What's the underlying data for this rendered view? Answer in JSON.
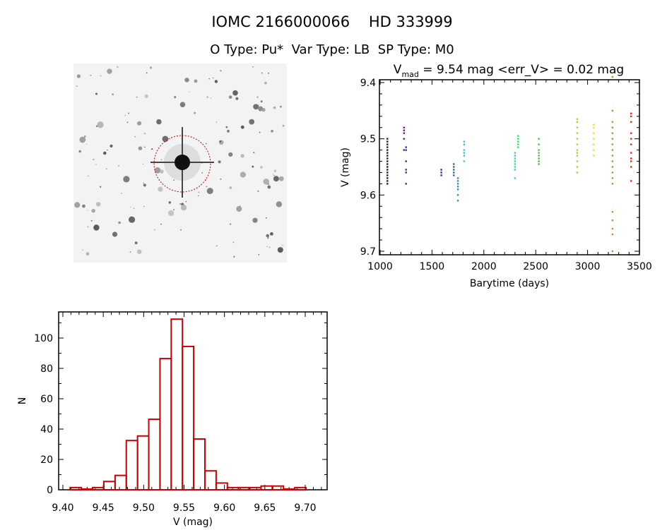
{
  "header": {
    "title": "IOMC 2166000066    HD 333999",
    "subtitle": "O Type: Pu*  Var Type: LB  SP Type: M0"
  },
  "sky_image": {
    "description_icon": "star-field-image",
    "target_marker_color": "#cc0000"
  },
  "chart_data": [
    {
      "type": "scatter",
      "title_parts": {
        "v": "V",
        "sub": "mad",
        "rest": " = 9.54 mag <err_V> = 0.02 mag"
      },
      "xlabel": "Barytime (days)",
      "ylabel": "V (mag)",
      "xlim": [
        1000,
        3500
      ],
      "ylim": [
        9.4,
        9.7
      ],
      "y_inverted": true,
      "xticks": [
        1000,
        1500,
        2000,
        2500,
        3000,
        3500
      ],
      "yticks": [
        "9.4",
        "9.5",
        "9.6",
        "9.7"
      ],
      "grid": false,
      "groups": [
        {
          "t": 1070,
          "color": "#3a0a4a",
          "v": [
            9.5,
            9.505,
            9.51,
            9.515,
            9.52,
            9.525,
            9.53,
            9.535,
            9.54,
            9.545,
            9.55,
            9.555,
            9.56,
            9.565,
            9.57,
            9.575,
            9.58
          ]
        },
        {
          "t": 1230,
          "color": "#6a1a8a",
          "v": [
            9.48,
            9.485,
            9.49,
            9.5,
            9.52
          ]
        },
        {
          "t": 1250,
          "color": "#5a1a9a",
          "v": [
            9.515,
            9.52,
            9.54,
            9.555,
            9.56,
            9.58
          ]
        },
        {
          "t": 1590,
          "color": "#1030d0",
          "v": [
            9.555,
            9.56,
            9.565
          ]
        },
        {
          "t": 1710,
          "color": "#2060d0",
          "v": [
            9.545,
            9.55,
            9.555,
            9.56,
            9.565
          ]
        },
        {
          "t": 1750,
          "color": "#2090d8",
          "v": [
            9.57,
            9.575,
            9.58,
            9.585,
            9.59,
            9.6,
            9.61
          ]
        },
        {
          "t": 1810,
          "color": "#30c0e0",
          "v": [
            9.505,
            9.51,
            9.52,
            9.525,
            9.53,
            9.54
          ]
        },
        {
          "t": 2300,
          "color": "#20e0b0",
          "v": [
            9.525,
            9.53,
            9.535,
            9.54,
            9.545,
            9.55,
            9.555,
            9.57
          ]
        },
        {
          "t": 2330,
          "color": "#30e070",
          "v": [
            9.495,
            9.5,
            9.505,
            9.51,
            9.515
          ]
        },
        {
          "t": 2530,
          "color": "#30d040",
          "v": [
            9.5,
            9.51,
            9.52,
            9.525,
            9.53,
            9.535,
            9.54,
            9.545
          ]
        },
        {
          "t": 2900,
          "color": "#90e020",
          "v": [
            9.465,
            9.47,
            9.48,
            9.49,
            9.5,
            9.51,
            9.52,
            9.525,
            9.53,
            9.54,
            9.55,
            9.56
          ]
        },
        {
          "t": 3060,
          "color": "#f0e010",
          "v": [
            9.475,
            9.48,
            9.49,
            9.5,
            9.51,
            9.52,
            9.53
          ]
        },
        {
          "t": 3240,
          "color": "#e08020",
          "v": [
            9.39,
            9.45,
            9.47,
            9.48,
            9.49,
            9.5,
            9.51,
            9.52,
            9.53,
            9.54,
            9.55,
            9.56,
            9.57,
            9.58,
            9.63,
            9.645,
            9.66,
            9.67,
            9.7
          ]
        },
        {
          "t": 3420,
          "color": "#d03020",
          "v": [
            9.455,
            9.46,
            9.47,
            9.49,
            9.5,
            9.51,
            9.525,
            9.535,
            9.54,
            9.55,
            9.575
          ]
        }
      ]
    },
    {
      "type": "bar",
      "subtype": "histogram",
      "xlabel": "V (mag)",
      "ylabel": "N",
      "xlim": [
        9.395,
        9.727
      ],
      "ylim": [
        0,
        117
      ],
      "xticks": [
        "9.40",
        "9.45",
        "9.50",
        "9.55",
        "9.60",
        "9.65",
        "9.70"
      ],
      "yticks": [
        "0",
        "20",
        "40",
        "60",
        "80",
        "100"
      ],
      "bin_start": 9.409,
      "bin_width": 0.0139,
      "counts": [
        1,
        0,
        1,
        5,
        9,
        32,
        35,
        46,
        86,
        112,
        94,
        33,
        12,
        4,
        1,
        1,
        1,
        2,
        2,
        0,
        1
      ],
      "color": "#cc0000",
      "grid": false
    }
  ]
}
